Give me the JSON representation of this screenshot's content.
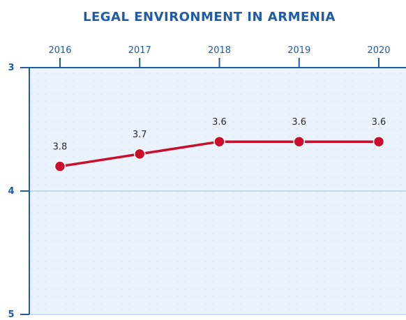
{
  "chart_data": {
    "type": "line",
    "title": "LEGAL ENVIRONMENT IN ARMENIA",
    "xlabel": "",
    "ylabel": "",
    "categories": [
      "2016",
      "2017",
      "2018",
      "2019",
      "2020"
    ],
    "series": [
      {
        "values": [
          3.8,
          3.7,
          3.6,
          3.6,
          3.6
        ],
        "data_labels": [
          "3.8",
          "3.7",
          "3.6",
          "3.6",
          "3.6"
        ]
      }
    ],
    "ylim": [
      3,
      5
    ],
    "y_inverted": true,
    "y_ticks": [
      "3",
      "4",
      "5"
    ],
    "x_axis_position": "top",
    "grid": true,
    "colors": {
      "line": "#c8102e",
      "marker": "#c8102e",
      "axis": "#1e5ba8",
      "plot_bg": "#eaf2fb",
      "grid": "#9ec0e0"
    }
  }
}
